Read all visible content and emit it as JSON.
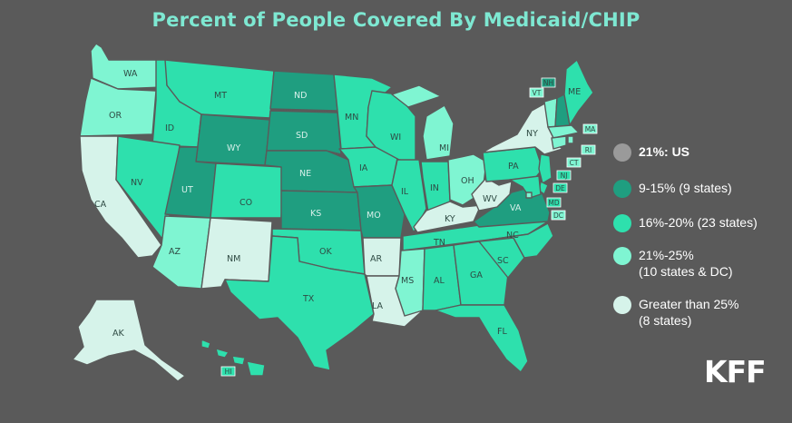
{
  "title": "Percent of People Covered By Medicaid/CHIP",
  "colors": {
    "background": "#5a5a5a",
    "title": "#7ee8d2",
    "us_marker": "#9a9a9a",
    "range_9_15": "#1f9e80",
    "range_16_20": "#2ee0ad",
    "range_21_25": "#7ff5d2",
    "range_over_25": "#d6f3ea"
  },
  "legend": [
    {
      "id": "us",
      "label": "21%: US",
      "color_key": "us_marker",
      "bold": true
    },
    {
      "id": "r1",
      "label": "9-15% (9 states)",
      "color_key": "range_9_15",
      "bold": false
    },
    {
      "id": "r2",
      "label": "16%-20% (23 states)",
      "color_key": "range_16_20",
      "bold": false
    },
    {
      "id": "r3",
      "label": "21%-25%\n(10 states & DC)",
      "color_key": "range_21_25",
      "bold": false
    },
    {
      "id": "r4",
      "label": "Greater than 25%\n(8 states)",
      "color_key": "range_over_25",
      "bold": false
    }
  ],
  "states": [
    {
      "abbr": "WA",
      "range": "21-25"
    },
    {
      "abbr": "OR",
      "range": "21-25"
    },
    {
      "abbr": "CA",
      "range": ">25"
    },
    {
      "abbr": "ID",
      "range": "16-20"
    },
    {
      "abbr": "NV",
      "range": "16-20"
    },
    {
      "abbr": "MT",
      "range": "16-20"
    },
    {
      "abbr": "WY",
      "range": "9-15"
    },
    {
      "abbr": "UT",
      "range": "9-15"
    },
    {
      "abbr": "AZ",
      "range": "21-25"
    },
    {
      "abbr": "CO",
      "range": "16-20"
    },
    {
      "abbr": "NM",
      "range": ">25"
    },
    {
      "abbr": "ND",
      "range": "9-15"
    },
    {
      "abbr": "SD",
      "range": "9-15"
    },
    {
      "abbr": "NE",
      "range": "9-15"
    },
    {
      "abbr": "KS",
      "range": "9-15"
    },
    {
      "abbr": "OK",
      "range": "16-20"
    },
    {
      "abbr": "TX",
      "range": "16-20"
    },
    {
      "abbr": "MN",
      "range": "16-20"
    },
    {
      "abbr": "IA",
      "range": "16-20"
    },
    {
      "abbr": "MO",
      "range": "9-15"
    },
    {
      "abbr": "AR",
      "range": ">25"
    },
    {
      "abbr": "LA",
      "range": ">25"
    },
    {
      "abbr": "WI",
      "range": "16-20"
    },
    {
      "abbr": "IL",
      "range": "16-20"
    },
    {
      "abbr": "MI",
      "range": "21-25"
    },
    {
      "abbr": "IN",
      "range": "16-20"
    },
    {
      "abbr": "OH",
      "range": "21-25"
    },
    {
      "abbr": "KY",
      "range": ">25"
    },
    {
      "abbr": "TN",
      "range": "16-20"
    },
    {
      "abbr": "MS",
      "range": "21-25"
    },
    {
      "abbr": "AL",
      "range": "16-20"
    },
    {
      "abbr": "GA",
      "range": "16-20"
    },
    {
      "abbr": "FL",
      "range": "16-20"
    },
    {
      "abbr": "SC",
      "range": "16-20"
    },
    {
      "abbr": "NC",
      "range": "16-20"
    },
    {
      "abbr": "VA",
      "range": "9-15"
    },
    {
      "abbr": "WV",
      "range": ">25"
    },
    {
      "abbr": "PA",
      "range": "16-20"
    },
    {
      "abbr": "NY",
      "range": ">25"
    },
    {
      "abbr": "VT",
      "range": "21-25"
    },
    {
      "abbr": "NH",
      "range": "9-15"
    },
    {
      "abbr": "ME",
      "range": "16-20"
    },
    {
      "abbr": "MA",
      "range": "21-25"
    },
    {
      "abbr": "RI",
      "range": "21-25"
    },
    {
      "abbr": "CT",
      "range": "21-25"
    },
    {
      "abbr": "NJ",
      "range": "16-20"
    },
    {
      "abbr": "DE",
      "range": "16-20"
    },
    {
      "abbr": "MD",
      "range": "16-20"
    },
    {
      "abbr": "DC",
      "range": "21-25"
    },
    {
      "abbr": "AK",
      "range": ">25"
    },
    {
      "abbr": "HI",
      "range": "16-20"
    }
  ],
  "logo": "KFF"
}
